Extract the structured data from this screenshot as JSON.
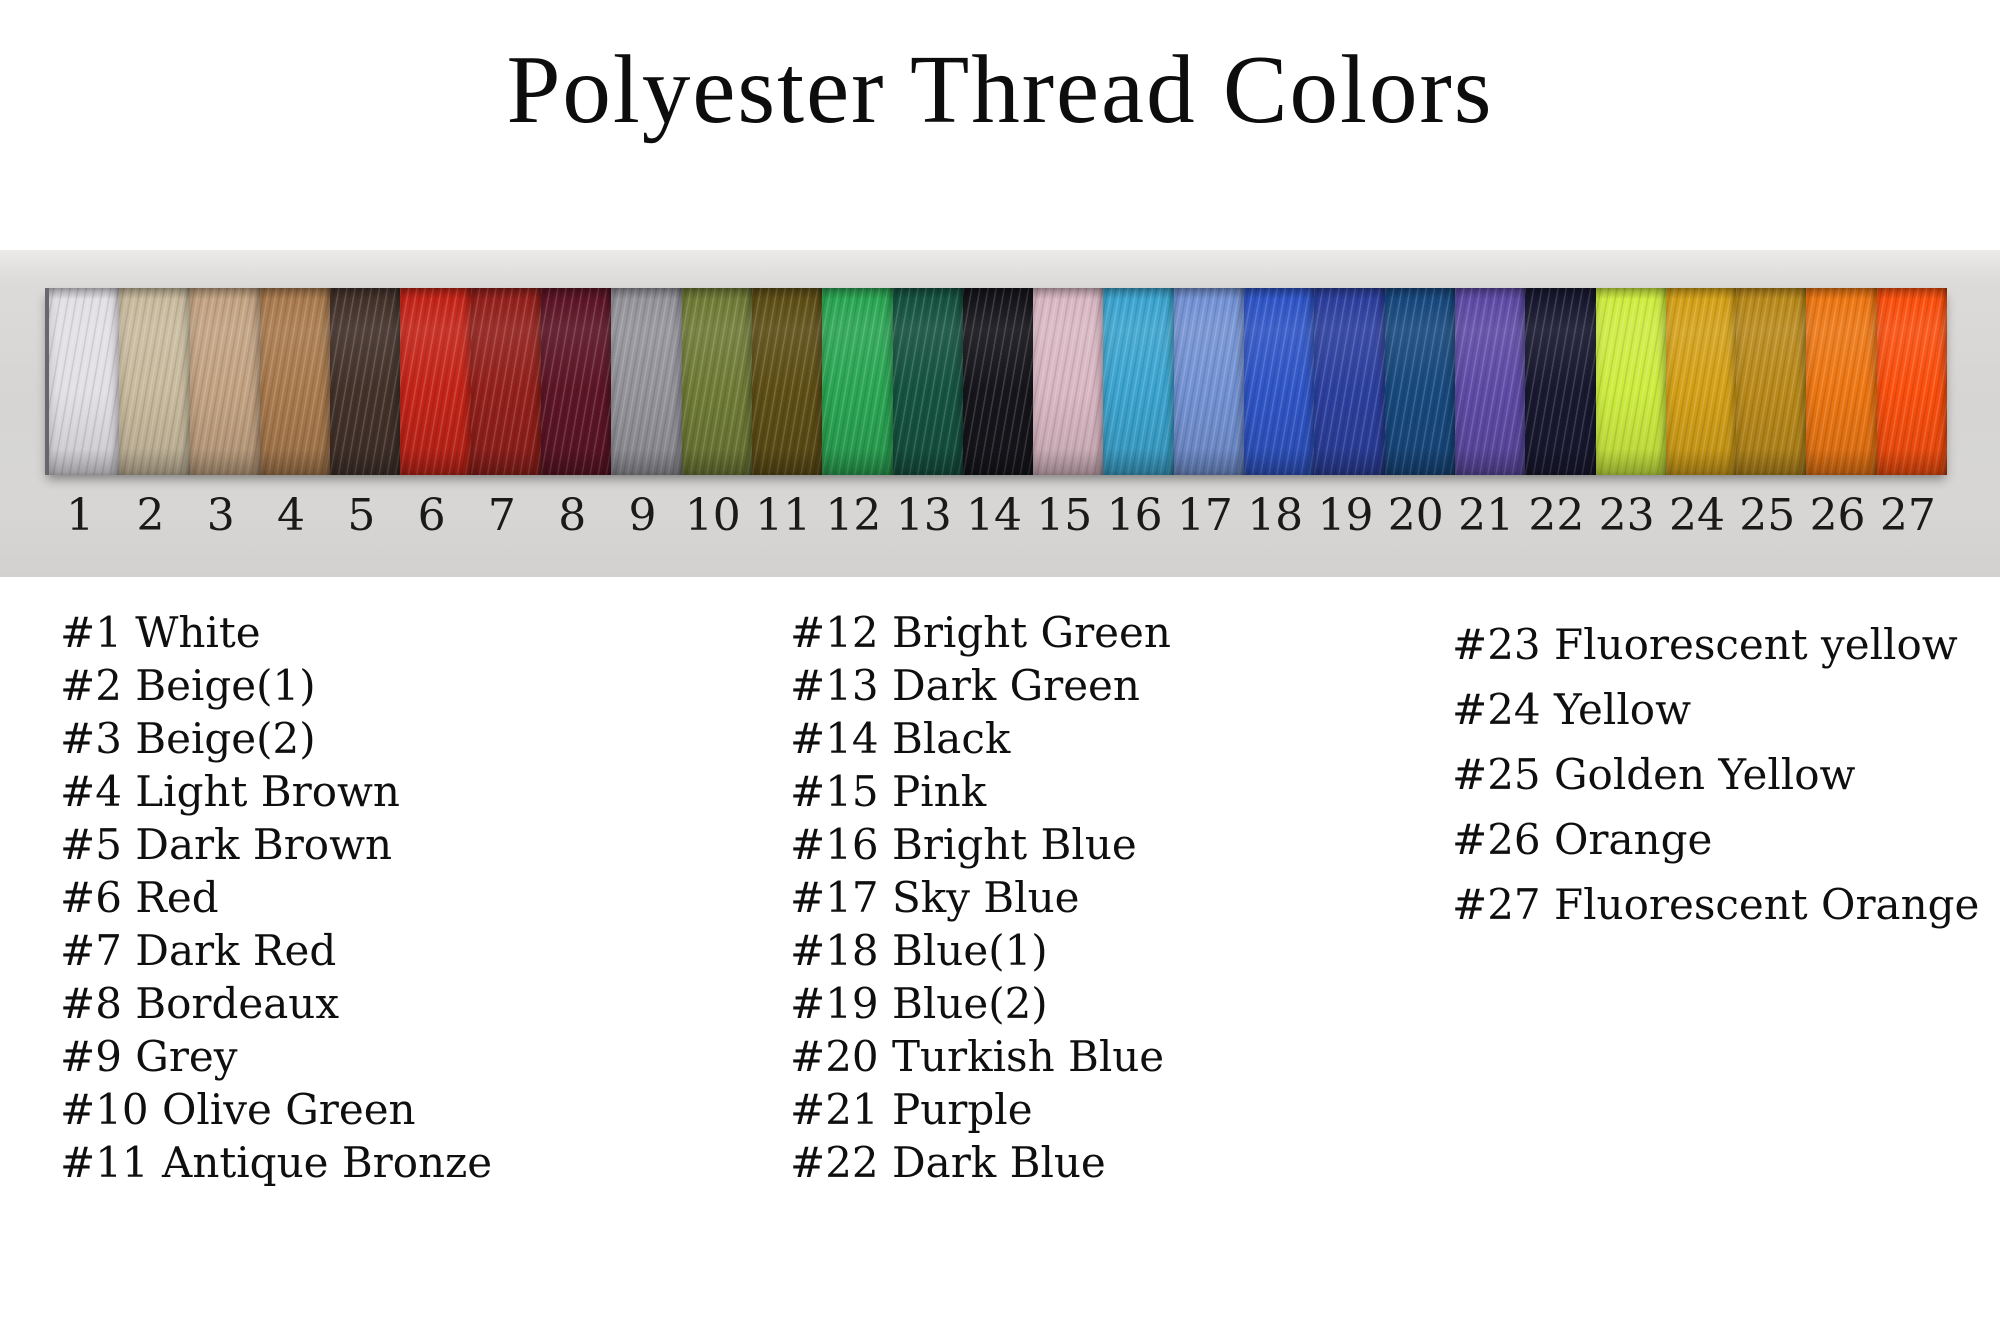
{
  "title": "Polyester Thread Colors",
  "page_background": "#ffffff",
  "card_background": "#d6d5d3",
  "text_color": "#111111",
  "chart_data": {
    "type": "table",
    "title": "Polyester Thread Colors",
    "columns": [
      "number",
      "name",
      "color_hex"
    ],
    "rows": [
      {
        "num": 1,
        "name": "White",
        "label": "#1 White",
        "color": "#e2dfe5"
      },
      {
        "num": 2,
        "name": "Beige(1)",
        "label": "#2 Beige(1)",
        "color": "#c8ba9d"
      },
      {
        "num": 3,
        "name": "Beige(2)",
        "label": "#3 Beige(2)",
        "color": "#c2a281"
      },
      {
        "num": 4,
        "name": "Light Brown",
        "label": "#4 Light Brown",
        "color": "#a97a4d"
      },
      {
        "num": 5,
        "name": "Dark Brown",
        "label": "#5 Dark Brown",
        "color": "#43322a"
      },
      {
        "num": 6,
        "name": "Red",
        "label": "#6 Red",
        "color": "#c52418"
      },
      {
        "num": 7,
        "name": "Dark Red",
        "label": "#7 Dark Red",
        "color": "#94201b"
      },
      {
        "num": 8,
        "name": "Bordeaux",
        "label": "#8 Bordeaux",
        "color": "#5d1525"
      },
      {
        "num": 9,
        "name": "Grey",
        "label": "#9 Grey",
        "color": "#94939a"
      },
      {
        "num": 10,
        "name": "Olive Green",
        "label": "#10 Olive Green",
        "color": "#6f7b36"
      },
      {
        "num": 11,
        "name": "Antique Bronze",
        "label": "#11 Antique Bronze",
        "color": "#5e4e15"
      },
      {
        "num": 12,
        "name": "Bright Green",
        "label": "#12 Bright Green",
        "color": "#2aa653"
      },
      {
        "num": 13,
        "name": "Dark Green",
        "label": "#13 Dark Green",
        "color": "#155340"
      },
      {
        "num": 14,
        "name": "Black",
        "label": "#14 Black",
        "color": "#16151b"
      },
      {
        "num": 15,
        "name": "Pink",
        "label": "#15 Pink",
        "color": "#d9b7c3"
      },
      {
        "num": 16,
        "name": "Bright Blue",
        "label": "#16 Bright Blue",
        "color": "#3ba4cf"
      },
      {
        "num": 17,
        "name": "Sky Blue",
        "label": "#17 Sky Blue",
        "color": "#7392d4"
      },
      {
        "num": 18,
        "name": "Blue(1)",
        "label": "#18 Blue(1)",
        "color": "#2f55c7"
      },
      {
        "num": 19,
        "name": "Blue(2)",
        "label": "#19 Blue(2)",
        "color": "#2c3f9f"
      },
      {
        "num": 20,
        "name": "Turkish Blue",
        "label": "#20 Turkish Blue",
        "color": "#17497f"
      },
      {
        "num": 21,
        "name": "Purple",
        "label": "#21 Purple",
        "color": "#5e4ba6"
      },
      {
        "num": 22,
        "name": "Dark Blue",
        "label": "#22 Dark Blue",
        "color": "#181830"
      },
      {
        "num": 23,
        "name": "Fluorescent yellow",
        "label": "#23 Fluorescent yellow",
        "color": "#cdec3e"
      },
      {
        "num": 24,
        "name": "Yellow",
        "label": "#24 Yellow",
        "color": "#d4a017"
      },
      {
        "num": 25,
        "name": "Golden Yellow",
        "label": "#25 Golden Yellow",
        "color": "#b9891a"
      },
      {
        "num": 26,
        "name": "Orange",
        "label": "#26 Orange",
        "color": "#ed7612"
      },
      {
        "num": 27,
        "name": "Fluorescent Orange",
        "label": "#27 Fluorescent Orange",
        "color": "#fb4f0d"
      }
    ],
    "legend_columns": [
      [
        1,
        2,
        3,
        4,
        5,
        6,
        7,
        8,
        9,
        10,
        11
      ],
      [
        12,
        13,
        14,
        15,
        16,
        17,
        18,
        19,
        20,
        21,
        22
      ],
      [
        23,
        24,
        25,
        26,
        27
      ]
    ]
  }
}
